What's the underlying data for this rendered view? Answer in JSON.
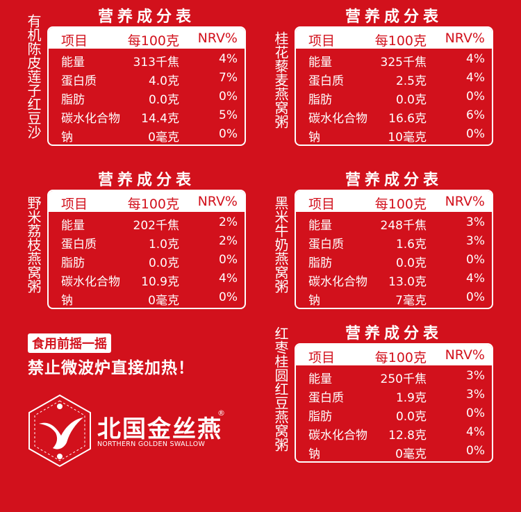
{
  "panels": [
    {
      "name": "有机陈皮莲子红豆沙",
      "title": "营养成分表",
      "header": [
        "项目",
        "每100克",
        "NRV%"
      ],
      "rows": [
        [
          "能量",
          "313千焦",
          "4%"
        ],
        [
          "蛋白质",
          "4.0克",
          "7%"
        ],
        [
          "脂肪",
          "0.0克",
          "0%"
        ],
        [
          "碳水化合物",
          "14.4克",
          "5%"
        ],
        [
          "钠",
          "0毫克",
          "0%"
        ]
      ]
    },
    {
      "name": "桂花藜麦燕窝粥",
      "title": "营养成分表",
      "header": [
        "项目",
        "每100克",
        "NRV%"
      ],
      "rows": [
        [
          "能量",
          "325千焦",
          "4%"
        ],
        [
          "蛋白质",
          "2.5克",
          "4%"
        ],
        [
          "脂肪",
          "0.0克",
          "0%"
        ],
        [
          "碳水化合物",
          "16.6克",
          "6%"
        ],
        [
          "钠",
          "10毫克",
          "0%"
        ]
      ]
    },
    {
      "name": "野米荔枝燕窝粥",
      "title": "营养成分表",
      "header": [
        "项目",
        "每100克",
        "NRV%"
      ],
      "rows": [
        [
          "能量",
          "202千焦",
          "2%"
        ],
        [
          "蛋白质",
          "1.0克",
          "2%"
        ],
        [
          "脂肪",
          "0.0克",
          "0%"
        ],
        [
          "碳水化合物",
          "10.9克",
          "4%"
        ],
        [
          "钠",
          "0毫克",
          "0%"
        ]
      ]
    },
    {
      "name": "黑米牛奶燕窝粥",
      "title": "营养成分表",
      "header": [
        "项目",
        "每100克",
        "NRV%"
      ],
      "rows": [
        [
          "能量",
          "248千焦",
          "3%"
        ],
        [
          "蛋白质",
          "1.6克",
          "3%"
        ],
        [
          "脂肪",
          "0.0克",
          "0%"
        ],
        [
          "碳水化合物",
          "13.0克",
          "4%"
        ],
        [
          "钠",
          "7毫克",
          "0%"
        ]
      ]
    },
    {
      "name": "红枣桂圆红豆燕窝粥",
      "title": "营养成分表",
      "header": [
        "项目",
        "每100克",
        "NRV%"
      ],
      "rows": [
        [
          "能量",
          "250千焦",
          "3%"
        ],
        [
          "蛋白质",
          "1.9克",
          "3%"
        ],
        [
          "脂肪",
          "0.0克",
          "0%"
        ],
        [
          "碳水化合物",
          "12.8克",
          "4%"
        ],
        [
          "钠",
          "0毫克",
          "0%"
        ]
      ]
    }
  ],
  "notice": {
    "tag": "食用前摇一摇",
    "warning": "禁止微波炉直接加热！"
  },
  "brand": {
    "name": "北国金丝燕",
    "mark": "®",
    "english": "NORTHERN GOLDEN SWALLOW"
  }
}
